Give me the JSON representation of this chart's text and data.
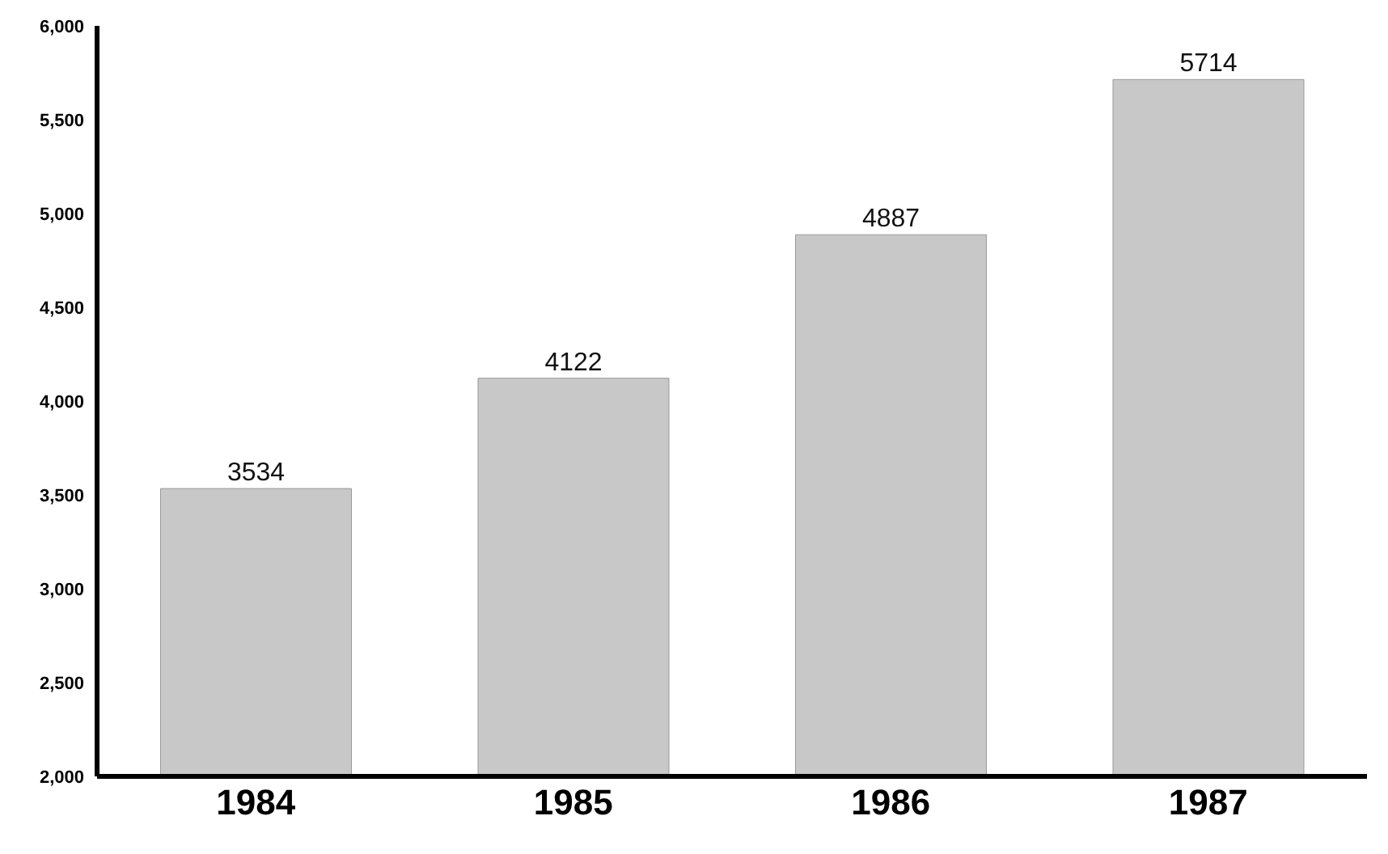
{
  "chart_data": {
    "type": "bar",
    "categories": [
      "1984",
      "1985",
      "1986",
      "1987"
    ],
    "values": [
      3534,
      4122,
      4887,
      5714
    ],
    "color": "#c8c8c8",
    "ylim": [
      2000,
      6000
    ],
    "yticks": [
      {
        "value": 2000,
        "label": "2,000"
      },
      {
        "value": 2500,
        "label": "2,500"
      },
      {
        "value": 3000,
        "label": "3,000"
      },
      {
        "value": 3500,
        "label": "3,500"
      },
      {
        "value": 4000,
        "label": "4,000"
      },
      {
        "value": 4500,
        "label": "4,500"
      },
      {
        "value": 5000,
        "label": "5,000"
      },
      {
        "value": 5500,
        "label": "5,500"
      },
      {
        "value": 6000,
        "label": "6,000"
      }
    ],
    "data_labels": true
  }
}
